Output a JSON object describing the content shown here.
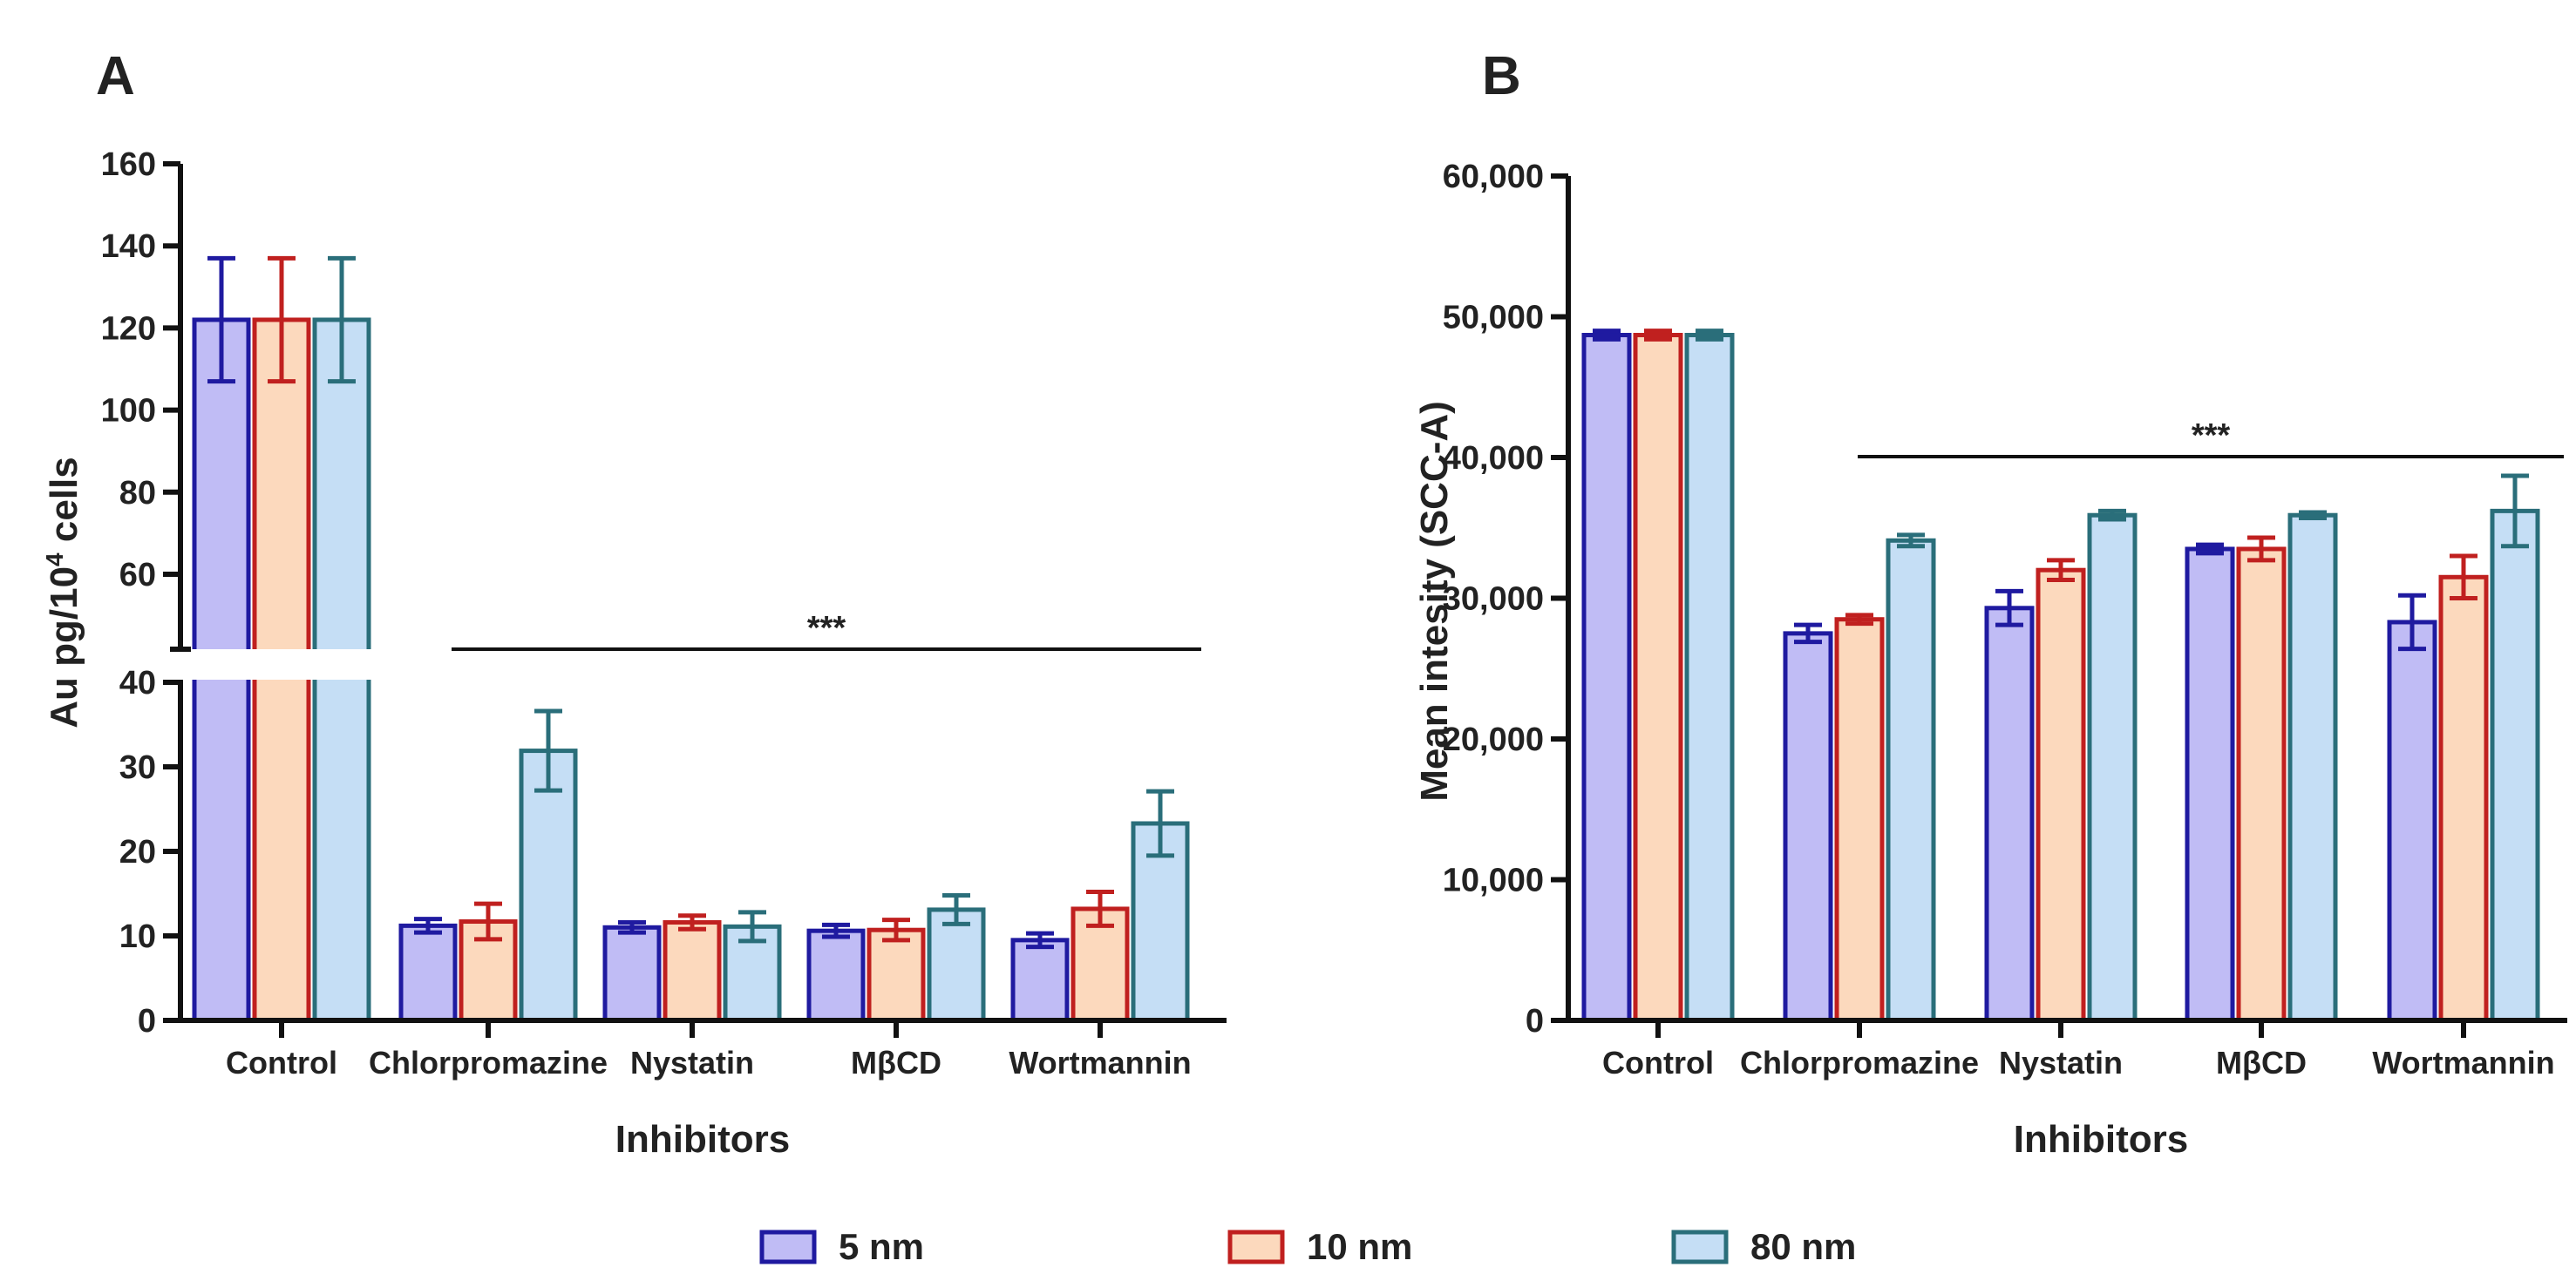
{
  "legend": {
    "items": [
      {
        "label": "5 nm",
        "fill": "#c0bcf5",
        "stroke": "#1f1aa0"
      },
      {
        "label": "10 nm",
        "fill": "#fcd9bd",
        "stroke": "#c0201f"
      },
      {
        "label": "80 nm",
        "fill": "#c5def5",
        "stroke": "#2a6e7a"
      }
    ],
    "placement": "bottom"
  },
  "chart_data": [
    {
      "panel": "A",
      "type": "bar",
      "xlabel": "Inhibitors",
      "ylabel": "Au pg/10",
      "ylabel_sup": "4",
      "ylabel_suffix": " cells",
      "categories": [
        "Control",
        "Chlorpromazine",
        "Nystatin",
        "MβCD",
        "Wortmannin"
      ],
      "y_axis_break": {
        "lower": [
          0,
          40
        ],
        "upper": [
          60,
          160
        ]
      },
      "yticks": [
        "0",
        "10",
        "20",
        "30",
        "40",
        "60",
        "80",
        "100",
        "120",
        "140",
        "160"
      ],
      "series": [
        {
          "name": "5 nm",
          "values": [
            122,
            11.2,
            11.0,
            10.6,
            9.5
          ],
          "errors": [
            15,
            0.8,
            0.6,
            0.7,
            0.8
          ]
        },
        {
          "name": "10 nm",
          "values": [
            122,
            11.7,
            11.6,
            10.7,
            13.2
          ],
          "errors": [
            15,
            2.1,
            0.8,
            1.2,
            2.0
          ]
        },
        {
          "name": "80 nm",
          "values": [
            122,
            31.9,
            11.1,
            13.1,
            23.3
          ],
          "errors": [
            15,
            4.7,
            1.7,
            1.7,
            3.8
          ]
        }
      ],
      "annotation": "***",
      "grid": false
    },
    {
      "panel": "B",
      "type": "bar",
      "xlabel": "Inhibitors",
      "ylabel": "Mean intesity (SCC-A)",
      "categories": [
        "Control",
        "Chlorpromazine",
        "Nystatin",
        "MβCD",
        "Wortmannin"
      ],
      "ylim": [
        0,
        60000
      ],
      "yticks": [
        "0",
        "10,000",
        "20,000",
        "30,000",
        "40,000",
        "50,000",
        "60,000"
      ],
      "series": [
        {
          "name": "5 nm",
          "values": [
            48700,
            27500,
            29300,
            33500,
            28300
          ],
          "errors": [
            300,
            600,
            1200,
            300,
            1900
          ]
        },
        {
          "name": "10 nm",
          "values": [
            48700,
            28500,
            32000,
            33500,
            31500
          ],
          "errors": [
            300,
            300,
            700,
            800,
            1500
          ]
        },
        {
          "name": "80 nm",
          "values": [
            48700,
            34100,
            35900,
            35900,
            36200
          ],
          "errors": [
            300,
            400,
            300,
            200,
            2500
          ]
        }
      ],
      "annotation": "***",
      "grid": false
    }
  ]
}
